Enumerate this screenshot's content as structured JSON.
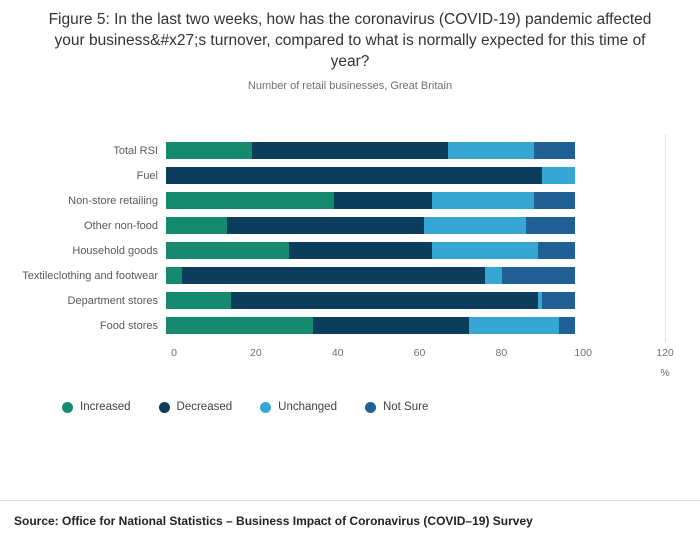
{
  "title": "Figure 5: In the last two weeks, how has the coronavirus (COVID-19) pandemic affected your business&#x27;s turnover, compared to what is normally expected for this time of year?",
  "subtitle": "Number of retail businesses, Great Britain",
  "source": "Source: Office for National Statistics – Business Impact of Coronavirus (COVID–19) Survey",
  "colors": {
    "increased": "#168a6f",
    "decreased": "#0d3d5c",
    "unchanged": "#37a6d4",
    "not_sure": "#206095",
    "gridline": "#e2e2e2"
  },
  "chart_data": {
    "type": "bar",
    "orientation": "horizontal",
    "stacked": true,
    "title": "Figure 5: In the last two weeks, how has the coronavirus (COVID-19) pandemic affected your business&#x27;s turnover, compared to what is normally expected for this time of year?",
    "subtitle": "Number of retail businesses, Great Britain",
    "categories": [
      "Total RSI",
      "Fuel",
      "Non-store retailing",
      "Other non-food",
      "Household goods",
      "Textileclothing and footwear",
      "Department stores",
      "Food stores"
    ],
    "series": [
      {
        "name": "Increased",
        "color": "#168a6f",
        "values": [
          21,
          0,
          41,
          15,
          30,
          4,
          16,
          36
        ]
      },
      {
        "name": "Decreased",
        "color": "#0d3d5c",
        "values": [
          48,
          92,
          24,
          48,
          35,
          74,
          75,
          38
        ]
      },
      {
        "name": "Unchanged",
        "color": "#37a6d4",
        "values": [
          21,
          8,
          25,
          25,
          26,
          4,
          1,
          22
        ]
      },
      {
        "name": "Not Sure",
        "color": "#206095",
        "values": [
          10,
          0,
          10,
          12,
          9,
          18,
          8,
          4
        ]
      }
    ],
    "x_ticks": [
      0,
      20,
      40,
      60,
      80,
      100,
      120
    ],
    "xmax": 120,
    "x_unit": "%",
    "xlabel": "%",
    "ylabel": "",
    "grid": "single line at 120",
    "legend_position": "bottom"
  }
}
